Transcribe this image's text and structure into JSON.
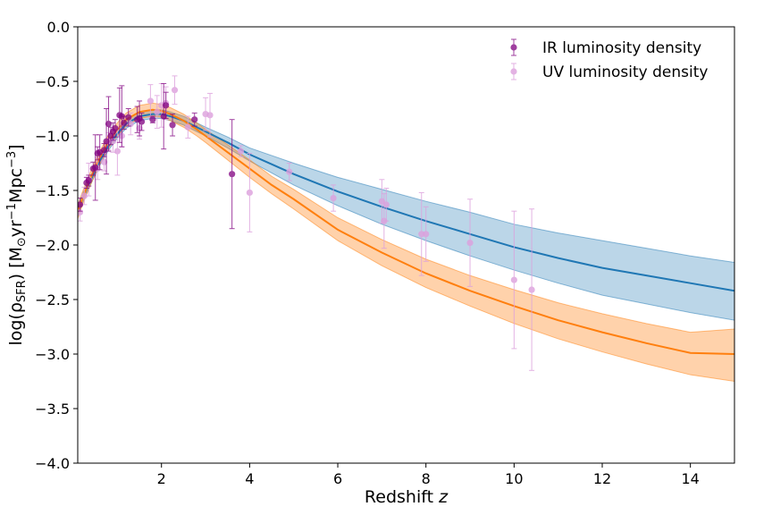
{
  "chart_data": {
    "type": "scatter",
    "xlabel": "Redshift z",
    "ylabel": "log(ρSFR) [M⊙yr−1Mpc−3]",
    "xlim": [
      0.1,
      15
    ],
    "ylim": [
      -4.0,
      0.0
    ],
    "x_ticks": [
      2,
      4,
      6,
      8,
      10,
      12,
      14
    ],
    "x_tick_labels": [
      "2",
      "4",
      "6",
      "8",
      "10",
      "12",
      "14"
    ],
    "y_ticks": [
      0.0,
      -0.5,
      -1.0,
      -1.5,
      -2.0,
      -2.5,
      -3.0,
      -3.5,
      -4.0
    ],
    "y_tick_labels": [
      "0.0",
      "−0.5",
      "−1.0",
      "−1.5",
      "−2.0",
      "−2.5",
      "−3.0",
      "−3.5",
      "−4.0"
    ],
    "grid": false,
    "legend_position": "top-right",
    "colors": {
      "ir": "#800080",
      "uv": "#dda0dd",
      "blue_model": "#1f77b4",
      "orange_model": "#ff7f0e"
    },
    "series": [
      {
        "name": "IR luminosity density",
        "kind": "errorbar",
        "x": [
          0.15,
          0.3,
          0.35,
          0.45,
          0.5,
          0.55,
          0.6,
          0.7,
          0.75,
          0.8,
          0.85,
          0.9,
          0.95,
          1.05,
          1.1,
          1.15,
          1.25,
          1.45,
          1.5,
          1.55,
          1.8,
          2.05,
          2.1,
          2.25,
          2.75,
          3.6
        ],
        "y": [
          -1.63,
          -1.43,
          -1.41,
          -1.3,
          -1.29,
          -1.16,
          -1.15,
          -1.13,
          -1.05,
          -0.89,
          -1.0,
          -0.96,
          -0.93,
          -0.81,
          -0.82,
          -0.88,
          -0.83,
          -0.85,
          -0.84,
          -0.87,
          -0.85,
          -0.82,
          -0.72,
          -0.9,
          -0.85,
          -1.35
        ],
        "yerr": [
          0.06,
          0.05,
          0.05,
          0.06,
          0.3,
          0.06,
          0.16,
          0.06,
          0.3,
          0.25,
          0.08,
          0.08,
          0.08,
          0.25,
          0.28,
          0.06,
          0.08,
          0.12,
          0.16,
          0.08,
          0.03,
          0.3,
          0.12,
          0.1,
          0.06,
          0.5
        ]
      },
      {
        "name": "UV luminosity density",
        "kind": "errorbar",
        "x": [
          0.05,
          0.15,
          0.25,
          0.35,
          0.55,
          0.7,
          0.8,
          0.9,
          1.0,
          1.1,
          1.3,
          1.5,
          1.75,
          1.9,
          2.0,
          2.1,
          2.3,
          2.6,
          3.0,
          3.1,
          3.8,
          4.0,
          4.9,
          5.9,
          7.0,
          7.05,
          7.1,
          7.9,
          8.0,
          9.0,
          10.0,
          10.4
        ],
        "y": [
          -1.72,
          -1.7,
          -1.55,
          -1.4,
          -1.3,
          -1.24,
          -1.05,
          -1.05,
          -1.14,
          -1.0,
          -0.89,
          -0.93,
          -0.68,
          -0.78,
          -0.72,
          -0.7,
          -0.58,
          -0.92,
          -0.8,
          -0.81,
          -1.14,
          -1.52,
          -1.33,
          -1.57,
          -1.6,
          -1.78,
          -1.63,
          -1.9,
          -1.9,
          -1.98,
          -2.32,
          -2.41
        ],
        "yerr": [
          0.08,
          0.08,
          0.08,
          0.15,
          0.1,
          0.08,
          0.08,
          0.1,
          0.22,
          0.1,
          0.1,
          0.1,
          0.15,
          0.15,
          0.2,
          0.15,
          0.13,
          0.1,
          0.15,
          0.2,
          0.05,
          0.36,
          0.08,
          0.12,
          0.2,
          0.25,
          0.15,
          0.38,
          0.25,
          0.4,
          0.63,
          0.74
        ]
      },
      {
        "kind": "model",
        "style": "blue",
        "x": [
          0.1,
          0.2,
          0.4,
          0.6,
          0.8,
          1.0,
          1.2,
          1.5,
          1.8,
          2.0,
          2.2,
          2.5,
          2.8,
          3.0,
          3.5,
          4.0,
          4.5,
          5.0,
          6.0,
          7.0,
          8.0,
          9.0,
          10.0,
          11.0,
          12.0,
          13.0,
          14.0,
          15.0
        ],
        "y": [
          -1.7,
          -1.58,
          -1.4,
          -1.23,
          -1.09,
          -0.98,
          -0.89,
          -0.82,
          -0.8,
          -0.8,
          -0.82,
          -0.86,
          -0.92,
          -0.96,
          -1.06,
          -1.17,
          -1.26,
          -1.35,
          -1.51,
          -1.65,
          -1.78,
          -1.9,
          -2.02,
          -2.12,
          -2.21,
          -2.28,
          -2.35,
          -2.42
        ],
        "y_low": [
          -1.74,
          -1.62,
          -1.44,
          -1.27,
          -1.13,
          -1.02,
          -0.93,
          -0.86,
          -0.84,
          -0.84,
          -0.86,
          -0.9,
          -0.96,
          -1.0,
          -1.11,
          -1.23,
          -1.34,
          -1.45,
          -1.64,
          -1.81,
          -1.96,
          -2.1,
          -2.23,
          -2.35,
          -2.46,
          -2.54,
          -2.62,
          -2.69
        ],
        "y_high": [
          -1.66,
          -1.54,
          -1.36,
          -1.19,
          -1.05,
          -0.94,
          -0.85,
          -0.78,
          -0.76,
          -0.76,
          -0.78,
          -0.82,
          -0.88,
          -0.92,
          -1.01,
          -1.11,
          -1.18,
          -1.25,
          -1.38,
          -1.49,
          -1.6,
          -1.7,
          -1.81,
          -1.89,
          -1.96,
          -2.03,
          -2.1,
          -2.16
        ]
      },
      {
        "kind": "model",
        "style": "orange",
        "x": [
          0.1,
          0.2,
          0.4,
          0.6,
          0.8,
          1.0,
          1.2,
          1.5,
          1.8,
          2.0,
          2.2,
          2.5,
          2.8,
          3.0,
          3.5,
          4.0,
          4.5,
          5.0,
          6.0,
          7.0,
          8.0,
          9.0,
          10.0,
          11.0,
          12.0,
          13.0,
          14.0,
          15.0
        ],
        "y": [
          -1.7,
          -1.58,
          -1.38,
          -1.2,
          -1.05,
          -0.94,
          -0.85,
          -0.78,
          -0.76,
          -0.77,
          -0.8,
          -0.86,
          -0.94,
          -1.0,
          -1.15,
          -1.3,
          -1.45,
          -1.58,
          -1.86,
          -2.07,
          -2.26,
          -2.42,
          -2.56,
          -2.69,
          -2.8,
          -2.9,
          -2.99,
          -3.0
        ],
        "y_low": [
          -1.76,
          -1.64,
          -1.44,
          -1.26,
          -1.11,
          -1.0,
          -0.91,
          -0.84,
          -0.82,
          -0.83,
          -0.86,
          -0.92,
          -1.0,
          -1.06,
          -1.22,
          -1.38,
          -1.53,
          -1.67,
          -1.96,
          -2.19,
          -2.39,
          -2.56,
          -2.72,
          -2.86,
          -2.98,
          -3.09,
          -3.19,
          -3.25
        ],
        "y_high": [
          -1.64,
          -1.52,
          -1.32,
          -1.14,
          -0.99,
          -0.88,
          -0.79,
          -0.72,
          -0.7,
          -0.71,
          -0.74,
          -0.8,
          -0.88,
          -0.94,
          -1.08,
          -1.22,
          -1.37,
          -1.49,
          -1.75,
          -1.95,
          -2.13,
          -2.28,
          -2.41,
          -2.53,
          -2.63,
          -2.72,
          -2.8,
          -2.77
        ]
      }
    ]
  }
}
